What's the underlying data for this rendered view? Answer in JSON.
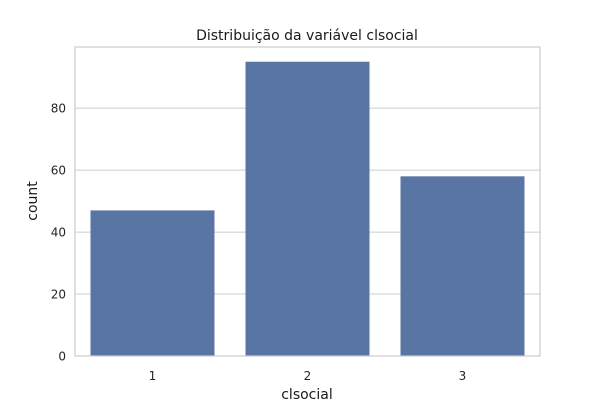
{
  "chart_data": {
    "type": "bar",
    "title": "Distribuição da variável clsocial",
    "xlabel": "clsocial",
    "ylabel": "count",
    "categories": [
      "1",
      "2",
      "3"
    ],
    "values": [
      47,
      95,
      58
    ],
    "ylim": [
      0,
      99.75
    ],
    "yticks": [
      0,
      20,
      40,
      60,
      80
    ],
    "grid": true,
    "bar_color": "#5975a4",
    "grid_color": "#cccccc"
  }
}
